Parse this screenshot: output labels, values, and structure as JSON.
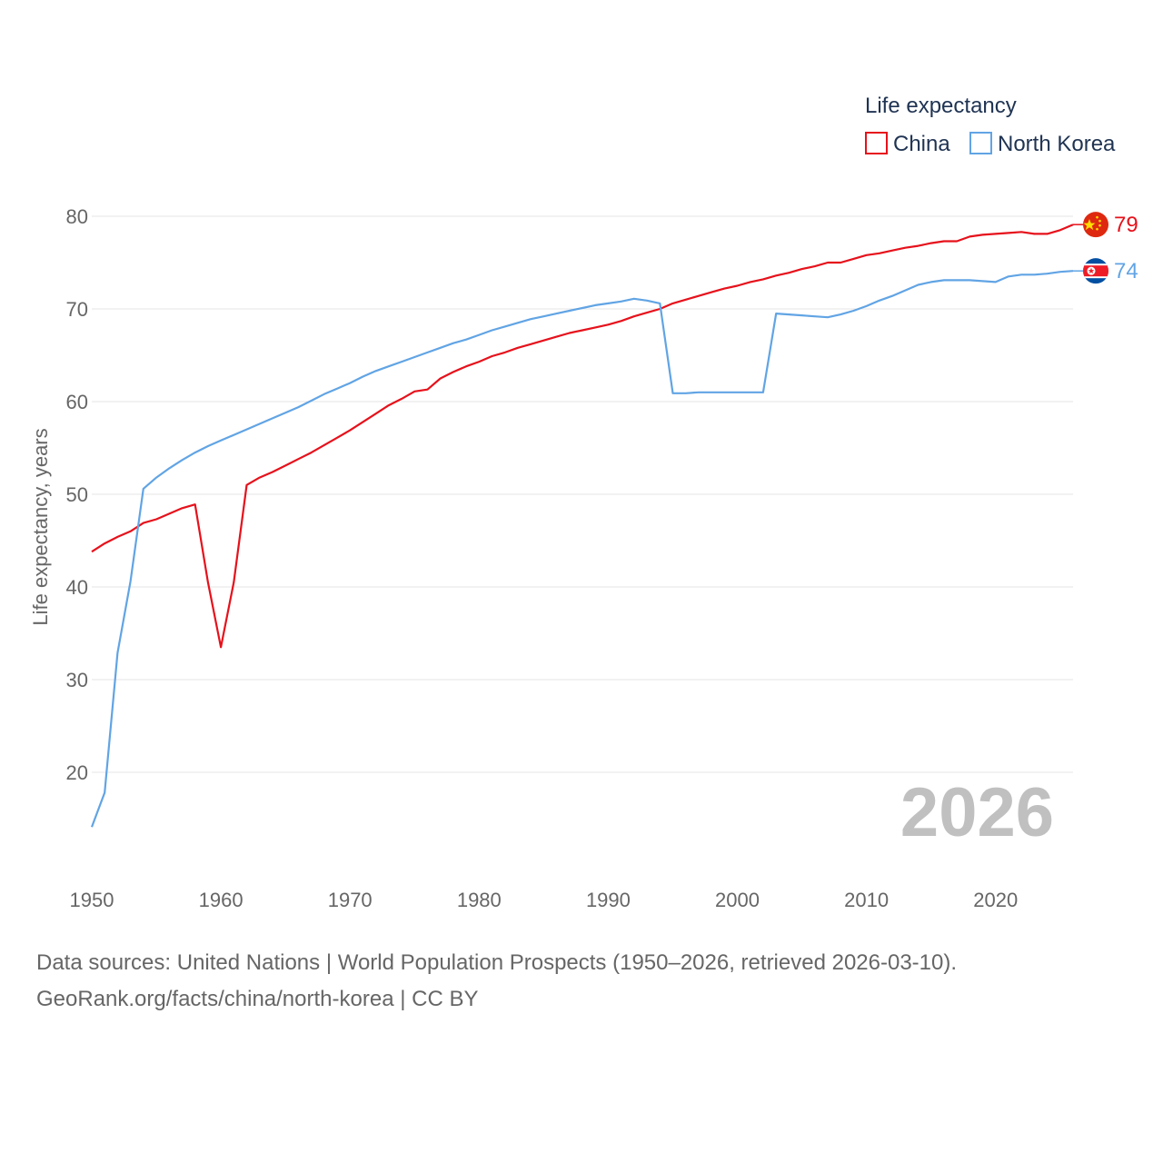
{
  "chart_data": {
    "type": "line",
    "legend_title": "Life expectancy",
    "ylabel": "Life expectancy, years",
    "xlim": [
      1950,
      2026
    ],
    "ylim": [
      13,
      82
    ],
    "x_ticks": [
      "1950",
      "1960",
      "1970",
      "1980",
      "1990",
      "2000",
      "2010",
      "2020"
    ],
    "y_ticks": [
      "20",
      "30",
      "40",
      "50",
      "60",
      "70",
      "80"
    ],
    "current_year": "2026",
    "x": [
      1950,
      1951,
      1952,
      1953,
      1954,
      1955,
      1956,
      1957,
      1958,
      1959,
      1960,
      1961,
      1962,
      1963,
      1964,
      1965,
      1966,
      1967,
      1968,
      1969,
      1970,
      1971,
      1972,
      1973,
      1974,
      1975,
      1976,
      1977,
      1978,
      1979,
      1980,
      1981,
      1982,
      1983,
      1984,
      1985,
      1986,
      1987,
      1988,
      1989,
      1990,
      1991,
      1992,
      1993,
      1994,
      1995,
      1996,
      1997,
      1998,
      1999,
      2000,
      2001,
      2002,
      2003,
      2004,
      2005,
      2006,
      2007,
      2008,
      2009,
      2010,
      2011,
      2012,
      2013,
      2014,
      2015,
      2016,
      2017,
      2018,
      2019,
      2020,
      2021,
      2022,
      2023,
      2024,
      2025,
      2026
    ],
    "series": [
      {
        "name": "China",
        "color": "#e6111b",
        "end_label": "79",
        "flag": "china-flag",
        "values": [
          43.8,
          44.7,
          45.4,
          46.0,
          46.9,
          47.3,
          47.9,
          48.5,
          48.9,
          40.5,
          33.5,
          40.5,
          51.0,
          51.8,
          52.4,
          53.1,
          53.8,
          54.5,
          55.3,
          56.1,
          56.9,
          57.8,
          58.7,
          59.6,
          60.3,
          61.1,
          61.3,
          62.5,
          63.2,
          63.8,
          64.3,
          64.9,
          65.3,
          65.8,
          66.2,
          66.6,
          67.0,
          67.4,
          67.7,
          68.0,
          68.3,
          68.7,
          69.2,
          69.6,
          70.0,
          70.6,
          71.0,
          71.4,
          71.8,
          72.2,
          72.5,
          72.9,
          73.2,
          73.6,
          73.9,
          74.3,
          74.6,
          75.0,
          75.0,
          75.4,
          75.8,
          76.0,
          76.3,
          76.6,
          76.8,
          77.1,
          77.3,
          77.3,
          77.8,
          78.0,
          78.1,
          78.2,
          78.3,
          78.1,
          78.1,
          78.5,
          79.1
        ]
      },
      {
        "name": "North Korea",
        "color": "#61a4e4",
        "end_label": "74",
        "flag": "north-korea-flag",
        "values": [
          14.1,
          17.8,
          32.9,
          40.6,
          50.6,
          51.8,
          52.8,
          53.7,
          54.5,
          55.2,
          55.8,
          56.4,
          57.0,
          57.6,
          58.2,
          58.8,
          59.4,
          60.1,
          60.8,
          61.4,
          62.0,
          62.7,
          63.3,
          63.8,
          64.3,
          64.8,
          65.3,
          65.8,
          66.3,
          66.7,
          67.2,
          67.7,
          68.1,
          68.5,
          68.9,
          69.2,
          69.5,
          69.8,
          70.1,
          70.4,
          70.6,
          70.8,
          71.1,
          70.9,
          70.6,
          60.9,
          60.9,
          61.0,
          61.0,
          61.0,
          61.0,
          61.0,
          61.0,
          69.5,
          69.4,
          69.3,
          69.2,
          69.1,
          69.4,
          69.8,
          70.3,
          70.9,
          71.4,
          72.0,
          72.6,
          72.9,
          73.1,
          73.1,
          73.1,
          73.0,
          72.9,
          73.5,
          73.7,
          73.7,
          73.8,
          74.0,
          74.1
        ]
      }
    ]
  },
  "source": {
    "line1": "Data sources: United Nations | World Population Prospects (1950–2026, retrieved 2026-03-10).",
    "line2": "GeoRank.org/facts/china/north-korea | CC BY"
  }
}
